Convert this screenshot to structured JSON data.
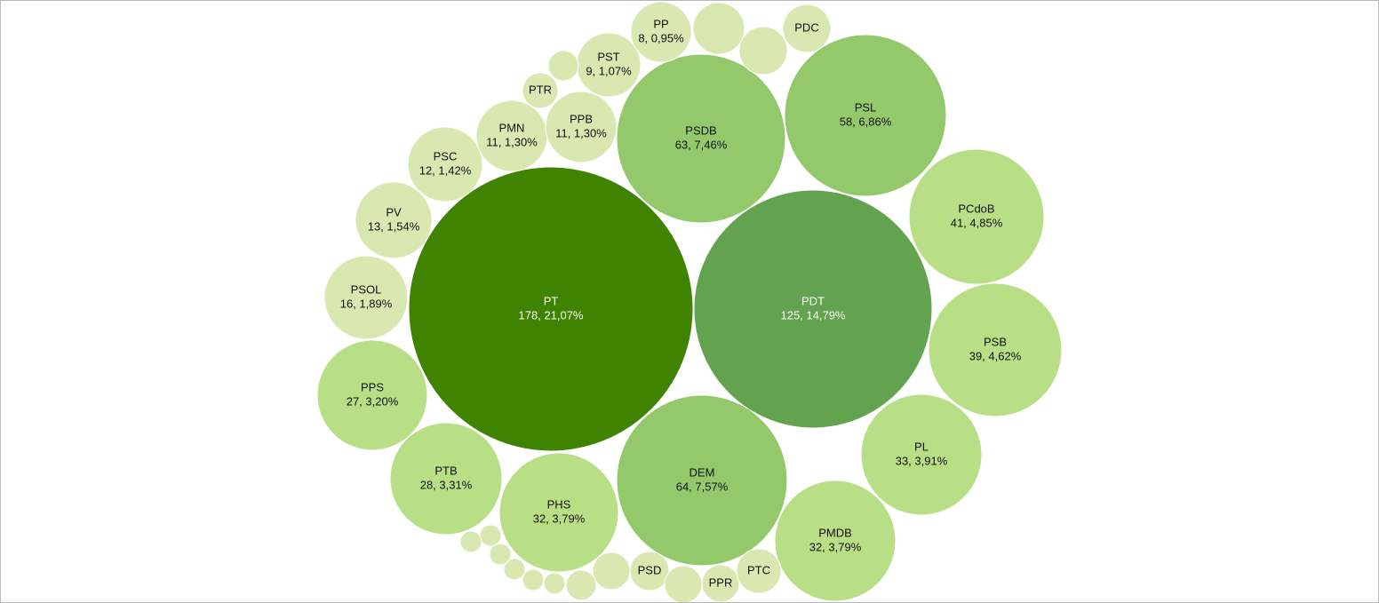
{
  "chart_data": {
    "type": "bubble",
    "title": "",
    "palette": {
      "dark": "#3f8300",
      "medium_dark": "#63a24f",
      "medium": "#94c96b",
      "light": "#b8de86",
      "pale": "#d8e8b0",
      "dark_text": "#ffffff",
      "light_text": "#111111"
    },
    "series": [
      {
        "id": "pt",
        "name": "PT",
        "value": 178,
        "percent": "21,07%",
        "label": "178, 21,07%",
        "shade": "dark"
      },
      {
        "id": "pdt",
        "name": "PDT",
        "value": 125,
        "percent": "14,79%",
        "label": "125, 14,79%",
        "shade": "medium_dark"
      },
      {
        "id": "dem",
        "name": "DEM",
        "value": 64,
        "percent": "7,57%",
        "label": "64, 7,57%",
        "shade": "medium"
      },
      {
        "id": "psdb",
        "name": "PSDB",
        "value": 63,
        "percent": "7,46%",
        "label": "63, 7,46%",
        "shade": "medium"
      },
      {
        "id": "psl",
        "name": "PSL",
        "value": 58,
        "percent": "6,86%",
        "label": "58, 6,86%",
        "shade": "medium"
      },
      {
        "id": "pcdob",
        "name": "PCdoB",
        "value": 41,
        "percent": "4,85%",
        "label": "41, 4,85%",
        "shade": "light"
      },
      {
        "id": "psb",
        "name": "PSB",
        "value": 39,
        "percent": "4,62%",
        "label": "39, 4,62%",
        "shade": "light"
      },
      {
        "id": "pl",
        "name": "PL",
        "value": 33,
        "percent": "3,91%",
        "label": "33, 3,91%",
        "shade": "light"
      },
      {
        "id": "pmdb",
        "name": "PMDB",
        "value": 32,
        "percent": "3,79%",
        "label": "32, 3,79%",
        "shade": "light"
      },
      {
        "id": "phs",
        "name": "PHS",
        "value": 32,
        "percent": "3,79%",
        "label": "32, 3,79%",
        "shade": "light"
      },
      {
        "id": "ptb",
        "name": "PTB",
        "value": 28,
        "percent": "3,31%",
        "label": "28, 3,31%",
        "shade": "light"
      },
      {
        "id": "pps",
        "name": "PPS",
        "value": 27,
        "percent": "3,20%",
        "label": "27, 3,20%",
        "shade": "light"
      },
      {
        "id": "psol",
        "name": "PSOL",
        "value": 16,
        "percent": "1,89%",
        "label": "16, 1,89%",
        "shade": "pale"
      },
      {
        "id": "pv",
        "name": "PV",
        "value": 13,
        "percent": "1,54%",
        "label": "13, 1,54%",
        "shade": "pale"
      },
      {
        "id": "psc",
        "name": "PSC",
        "value": 12,
        "percent": "1,42%",
        "label": "12, 1,42%",
        "shade": "pale"
      },
      {
        "id": "pmn",
        "name": "PMN",
        "value": 11,
        "percent": "1,30%",
        "label": "11, 1,30%",
        "shade": "pale"
      },
      {
        "id": "ppb",
        "name": "PPB",
        "value": 11,
        "percent": "1,30%",
        "label": "11, 1,30%",
        "shade": "pale"
      },
      {
        "id": "pst",
        "name": "PST",
        "value": 9,
        "percent": "1,07%",
        "label": "9, 1,07%",
        "shade": "pale"
      },
      {
        "id": "pp",
        "name": "PP",
        "value": 8,
        "percent": "0,95%",
        "label": "8, 0,95%",
        "shade": "pale"
      },
      {
        "id": "pdc",
        "name": "PDC",
        "value": null,
        "percent": "",
        "label": "",
        "shade": "pale"
      },
      {
        "id": "ptr",
        "name": "PTR",
        "value": null,
        "percent": "",
        "label": "",
        "shade": "pale"
      },
      {
        "id": "psd",
        "name": "PSD",
        "value": null,
        "percent": "",
        "label": "",
        "shade": "pale"
      },
      {
        "id": "ppr",
        "name": "PPR",
        "value": null,
        "percent": "",
        "label": "",
        "shade": "pale"
      },
      {
        "id": "ptc",
        "name": "PTC",
        "value": null,
        "percent": "",
        "label": "",
        "shade": "pale"
      },
      {
        "id": "u1",
        "name": "",
        "value": null,
        "percent": "",
        "label": "",
        "shade": "pale"
      },
      {
        "id": "u2",
        "name": "",
        "value": null,
        "percent": "",
        "label": "",
        "shade": "pale"
      },
      {
        "id": "u3",
        "name": "",
        "value": null,
        "percent": "",
        "label": "",
        "shade": "pale"
      },
      {
        "id": "u4",
        "name": "",
        "value": null,
        "percent": "",
        "label": "",
        "shade": "pale"
      },
      {
        "id": "u5",
        "name": "",
        "value": null,
        "percent": "",
        "label": "",
        "shade": "pale"
      },
      {
        "id": "u6",
        "name": "",
        "value": null,
        "percent": "",
        "label": "",
        "shade": "pale"
      },
      {
        "id": "u7",
        "name": "",
        "value": null,
        "percent": "",
        "label": "",
        "shade": "pale"
      },
      {
        "id": "u8",
        "name": "",
        "value": null,
        "percent": "",
        "label": "",
        "shade": "pale"
      },
      {
        "id": "u9",
        "name": "",
        "value": null,
        "percent": "",
        "label": "",
        "shade": "pale"
      },
      {
        "id": "u10",
        "name": "",
        "value": null,
        "percent": "",
        "label": "",
        "shade": "pale"
      },
      {
        "id": "u11",
        "name": "",
        "value": null,
        "percent": "",
        "label": "",
        "shade": "pale"
      },
      {
        "id": "u12",
        "name": "",
        "value": null,
        "percent": "",
        "label": "",
        "shade": "pale"
      }
    ]
  }
}
